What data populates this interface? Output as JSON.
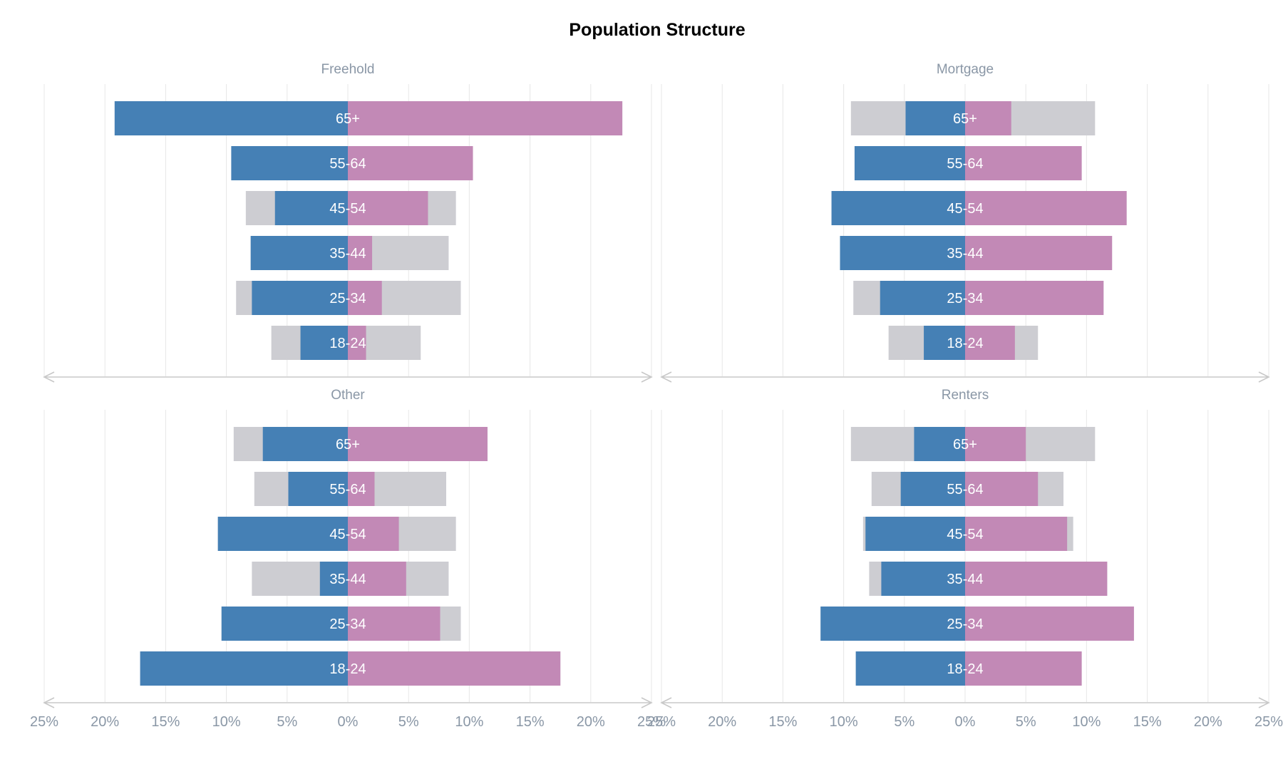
{
  "chart_data": {
    "type": "bar",
    "title": "Population Structure",
    "orientation": "horizontal-diverging",
    "categories": [
      "65+",
      "55-64",
      "45-54",
      "35-44",
      "25-34",
      "18-24"
    ],
    "xlim": [
      -25,
      25
    ],
    "xticks": [
      -25,
      -20,
      -15,
      -10,
      -5,
      0,
      5,
      10,
      15,
      20,
      25
    ],
    "tick_labels": [
      "25%",
      "20%",
      "15%",
      "10%",
      "5%",
      "0%",
      "5%",
      "10%",
      "15%",
      "20%",
      "25%"
    ],
    "grid": true,
    "colors": {
      "left": "#4580b5",
      "right": "#c289b6",
      "reference": "#cdcdd2",
      "grid": "#e7e7e7",
      "axis": "#c8c8c8",
      "label_text": "#8a97a6"
    },
    "panels": [
      {
        "name": "Freehold",
        "left": [
          19.2,
          9.6,
          6.0,
          8.0,
          7.9,
          3.9
        ],
        "right": [
          22.6,
          10.3,
          6.6,
          2.0,
          2.8,
          1.5
        ],
        "reference_left": [
          19.2,
          9.6,
          8.4,
          8.0,
          9.2,
          6.3
        ],
        "reference_right": [
          22.6,
          10.3,
          8.9,
          8.3,
          9.3,
          6.0
        ]
      },
      {
        "name": "Mortgage",
        "left": [
          4.9,
          9.1,
          11.0,
          10.3,
          7.0,
          3.4
        ],
        "right": [
          3.8,
          9.6,
          13.3,
          12.1,
          11.4,
          4.1
        ],
        "reference_left": [
          9.4,
          9.1,
          11.0,
          10.3,
          9.2,
          6.3
        ],
        "reference_right": [
          10.7,
          9.6,
          13.3,
          12.1,
          11.4,
          6.0
        ]
      },
      {
        "name": "Other",
        "left": [
          7.0,
          4.9,
          10.7,
          2.3,
          10.4,
          17.1
        ],
        "right": [
          11.5,
          2.2,
          4.2,
          4.8,
          7.6,
          17.5
        ],
        "reference_left": [
          9.4,
          7.7,
          10.7,
          7.9,
          10.4,
          17.1
        ],
        "reference_right": [
          11.5,
          8.1,
          8.9,
          8.3,
          9.3,
          17.5
        ]
      },
      {
        "name": "Renters",
        "left": [
          4.2,
          5.3,
          8.2,
          6.9,
          11.9,
          9.0
        ],
        "right": [
          5.0,
          6.0,
          8.4,
          11.7,
          13.9,
          9.6
        ],
        "reference_left": [
          9.4,
          7.7,
          8.4,
          7.9,
          11.9,
          9.0
        ],
        "reference_right": [
          10.7,
          8.1,
          8.9,
          11.7,
          13.9,
          9.6
        ]
      }
    ]
  }
}
